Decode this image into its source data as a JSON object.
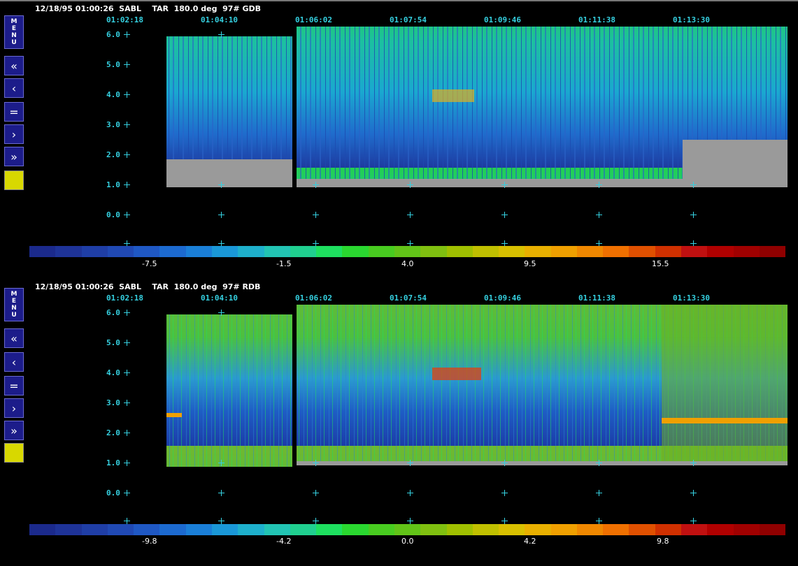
{
  "panels": [
    {
      "header": "12/18/95 01:00:26  SABL    TAR  180.0 deg  97# GDB",
      "times": [
        "01:02:18",
        "01:04:10",
        "01:06:02",
        "01:07:54",
        "01:09:46",
        "01:11:38",
        "01:13:30"
      ],
      "heights": [
        "6.0",
        "5.0",
        "4.0",
        "3.0",
        "2.0",
        "1.0",
        "0.0"
      ],
      "colorbar_ticks": [
        "-7.5",
        "-1.5",
        "4.0",
        "9.5",
        "15.5"
      ]
    },
    {
      "header": "12/18/95 01:00:26  SABL    TAR  180.0 deg  97# RDB",
      "times": [
        "01:02:18",
        "01:04:10",
        "01:06:02",
        "01:07:54",
        "01:09:46",
        "01:11:38",
        "01:13:30"
      ],
      "heights": [
        "6.0",
        "5.0",
        "4.0",
        "3.0",
        "2.0",
        "1.0",
        "0.0"
      ],
      "colorbar_ticks": [
        "-9.8",
        "-4.2",
        "0.0",
        "4.2",
        "9.8"
      ]
    }
  ],
  "sidebar": {
    "menu_letters": [
      "M",
      "E",
      "N",
      "U"
    ],
    "fast_back": "«",
    "back": "‹",
    "stop": "=",
    "forward": "›",
    "fast_forward": "»"
  },
  "colors": {
    "accent": "#35d0e0",
    "button_bg": "#1c1c8a",
    "indicator": "#d8d800",
    "colorbar": [
      "#1b2a8c",
      "#1e3398",
      "#1f3ea6",
      "#2049b4",
      "#1f58c4",
      "#1c6ad0",
      "#1a7fd8",
      "#1a98d8",
      "#1eb0cc",
      "#22c4b4",
      "#20d090",
      "#1ee060",
      "#2ad830",
      "#48cc20",
      "#62c418",
      "#80c010",
      "#a0c000",
      "#c0c000",
      "#d8c000",
      "#e8b000",
      "#f0a000",
      "#f08800",
      "#f07000",
      "#e05000",
      "#d03000",
      "#c01010",
      "#b00000",
      "#a00000",
      "#900000"
    ]
  }
}
